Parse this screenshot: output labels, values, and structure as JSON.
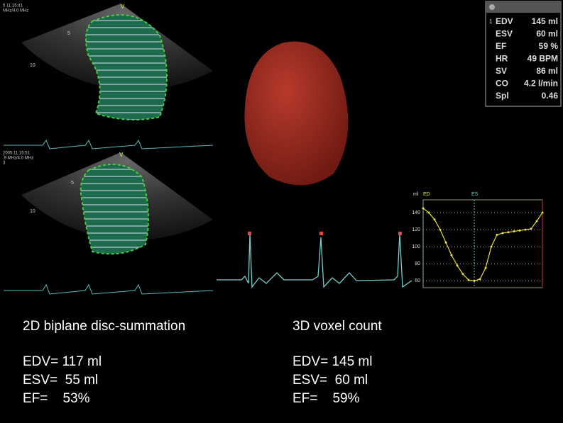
{
  "echo_top": {
    "header": [
      "5 11:15:41",
      "MHz/4.0 MHz"
    ],
    "depth_labels": [
      "5",
      "10"
    ],
    "marker": "V"
  },
  "echo_bottom": {
    "header": [
      "2005 11:15:51",
      ".9 MHz/4.0 MHz",
      "3"
    ],
    "depth_labels": [
      "5",
      "10"
    ],
    "marker": "V"
  },
  "measurements": {
    "index": "1",
    "rows": [
      {
        "label": "EDV",
        "value": "145 ml"
      },
      {
        "label": "ESV",
        "value": "60 ml"
      },
      {
        "label": "EF",
        "value": "59 %"
      },
      {
        "label": "HR",
        "value": "49 BPM"
      },
      {
        "label": "SV",
        "value": "86 ml"
      },
      {
        "label": "CO",
        "value": "4.2 l/min"
      },
      {
        "label": "Spl",
        "value": "0.46"
      }
    ]
  },
  "chart_data": {
    "type": "line",
    "unit_label": "ml",
    "markers": [
      "ED",
      "ES"
    ],
    "color": "#e8e040",
    "values": [
      145,
      140,
      132,
      120,
      105,
      90,
      78,
      68,
      61,
      60,
      62,
      75,
      100,
      114,
      116,
      117,
      118,
      119,
      120,
      121,
      130,
      140
    ],
    "ylim": [
      52,
      155
    ],
    "yticks": [
      60,
      80,
      100,
      120,
      140
    ],
    "grid": true
  },
  "summary_2d": {
    "title": "2D biplane disc-summation",
    "lines": [
      "EDV= 117 ml",
      "ESV=  55 ml",
      "EF=    53%"
    ]
  },
  "summary_3d": {
    "title": "3D voxel count",
    "lines": [
      "EDV= 145 ml",
      "ESV=  60 ml",
      "EF=    59%"
    ]
  }
}
